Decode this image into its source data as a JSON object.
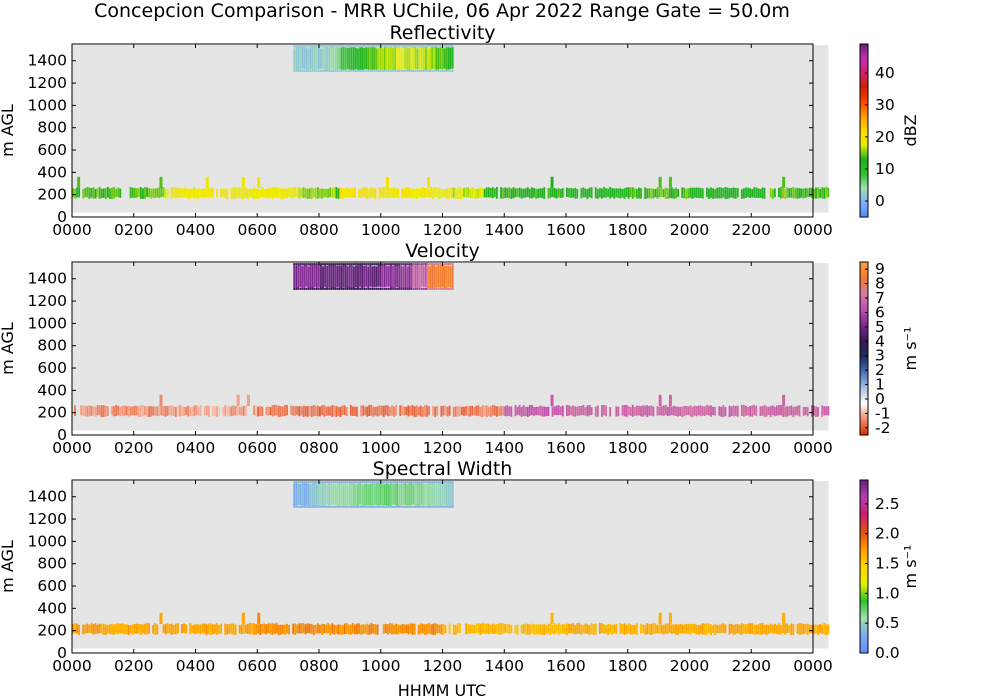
{
  "figure": {
    "suptitle": "Concepcion Comparison - MRR UChile, 06 Apr 2022 Range Gate = 50.0m",
    "xlabel": "HHMM UTC"
  },
  "colors": {
    "background": "#ffffff",
    "panel_fill": "#e5e5e5"
  },
  "chart_data": [
    {
      "type": "heatmap",
      "title": "Reflectivity",
      "xlabel": "HHMM UTC",
      "ylabel": "m AGL",
      "xlim": [
        0,
        2400
      ],
      "ylim": [
        0,
        1550
      ],
      "xticks": [
        "0000",
        "0200",
        "0400",
        "0600",
        "0800",
        "1000",
        "1200",
        "1400",
        "1600",
        "1800",
        "2000",
        "2200",
        "0000"
      ],
      "yticks": [
        0,
        200,
        400,
        600,
        800,
        1000,
        1200,
        1400
      ],
      "colorbar": {
        "label": "dBZ",
        "range": [
          -5,
          49
        ],
        "ticks": [
          "0",
          "10",
          "20",
          "30",
          "40"
        ],
        "tick_values": [
          0,
          10,
          20,
          30,
          40
        ],
        "colors": [
          "#4c8aff",
          "#7fb1f5",
          "#a0e0b0",
          "#2ec030",
          "#22b022",
          "#e6f000",
          "#ffd800",
          "#ff9a00",
          "#ff4500",
          "#d02000",
          "#cc2070",
          "#c030b0",
          "#6a1f80"
        ]
      },
      "layers": [
        {
          "name": "boundary-layer echo",
          "t_start": 0,
          "t_end": 2390,
          "y_bottom": 170,
          "y_top": 260,
          "segments": [
            [
              0,
              260,
              14
            ],
            [
              260,
              720,
              19
            ],
            [
              720,
              790,
              16
            ],
            [
              840,
              1060,
              20
            ],
            [
              1060,
              1180,
              19
            ],
            [
              1180,
              1320,
              17
            ],
            [
              1320,
              1560,
              13
            ],
            [
              1560,
              1760,
              11
            ],
            [
              1760,
              2000,
              14
            ],
            [
              2000,
              2230,
              12
            ],
            [
              2230,
              2390,
              14
            ]
          ],
          "spikes_hhmm": [
            10,
            250,
            420,
            530,
            560,
            1010,
            1130,
            1490,
            1900,
            1920,
            2300
          ]
        },
        {
          "name": "elevated layer",
          "t_start": 710,
          "t_end": 1220,
          "y_bottom": 1320,
          "y_top": 1520,
          "core_center_time": 1050,
          "core_value": 17,
          "edge_value": 2
        }
      ]
    },
    {
      "type": "heatmap",
      "title": "Velocity",
      "xlabel": "HHMM UTC",
      "ylabel": "m AGL",
      "xlim": [
        0,
        2400
      ],
      "ylim": [
        0,
        1550
      ],
      "xticks": [
        "0000",
        "0200",
        "0400",
        "0600",
        "0800",
        "1000",
        "1200",
        "1400",
        "1600",
        "1800",
        "2000",
        "2200",
        "0000"
      ],
      "yticks": [
        0,
        200,
        400,
        600,
        800,
        1000,
        1200,
        1400
      ],
      "colorbar": {
        "label": "m s⁻¹",
        "range": [
          -2.5,
          9.5
        ],
        "ticks": [
          "-2",
          "-1",
          "0",
          "1",
          "2",
          "3",
          "4",
          "5",
          "6",
          "7",
          "8",
          "9"
        ],
        "tick_values": [
          -2,
          -1,
          0,
          1,
          2,
          3,
          4,
          5,
          6,
          7,
          8,
          9
        ],
        "colors": [
          "#d63200",
          "#f08a6a",
          "#ffffff",
          "#a8c0e0",
          "#4a70b8",
          "#1a2a5a",
          "#3a1a50",
          "#7a2a90",
          "#c050b0",
          "#d67aa0",
          "#f07a30",
          "#ffa040"
        ]
      },
      "layers": [
        {
          "name": "boundary-layer echo",
          "t_start": 0,
          "t_end": 2390,
          "y_bottom": 170,
          "y_top": 260,
          "segments": [
            [
              0,
              260,
              -1.4
            ],
            [
              260,
              600,
              -1.2
            ],
            [
              600,
              1100,
              -1.6
            ],
            [
              1100,
              1400,
              -1.5
            ],
            [
              1400,
              1600,
              6.5
            ],
            [
              1600,
              2390,
              6.8
            ]
          ],
          "spikes_hhmm": [
            250,
            520,
            540,
            1490,
            1900,
            1920,
            2300
          ]
        },
        {
          "name": "elevated layer",
          "t_start": 710,
          "t_end": 1220,
          "y_bottom": 1320,
          "y_top": 1520,
          "segments": [
            [
              710,
              800,
              5.2
            ],
            [
              800,
              960,
              4.8
            ],
            [
              960,
              1060,
              5.5
            ],
            [
              1060,
              1130,
              6.8
            ],
            [
              1130,
              1220,
              8.5
            ]
          ]
        }
      ]
    },
    {
      "type": "heatmap",
      "title": "Spectral Width",
      "xlabel": "HHMM UTC",
      "ylabel": "m AGL",
      "xlim": [
        0,
        2400
      ],
      "ylim": [
        0,
        1550
      ],
      "xticks": [
        "0000",
        "0200",
        "0400",
        "0600",
        "0800",
        "1000",
        "1200",
        "1400",
        "1600",
        "1800",
        "2000",
        "2200",
        "0000"
      ],
      "yticks": [
        0,
        200,
        400,
        600,
        800,
        1000,
        1200,
        1400
      ],
      "colorbar": {
        "label": "m s⁻¹",
        "range": [
          0,
          2.9
        ],
        "ticks": [
          "0.0",
          "0.5",
          "1.0",
          "1.5",
          "2.0",
          "2.5"
        ],
        "tick_values": [
          0,
          0.5,
          1.0,
          1.5,
          2.0,
          2.5
        ],
        "colors": [
          "#6a8cff",
          "#7aaaf0",
          "#a0e0b0",
          "#2ec030",
          "#e6f000",
          "#ffd800",
          "#ff9a00",
          "#e05010",
          "#cc2070",
          "#b040b0",
          "#6a1f80"
        ]
      },
      "layers": [
        {
          "name": "boundary-layer echo",
          "t_start": 0,
          "t_end": 2390,
          "y_bottom": 170,
          "y_top": 260,
          "segments": [
            [
              0,
              600,
              1.7
            ],
            [
              600,
              1200,
              1.8
            ],
            [
              1200,
              1600,
              1.6
            ],
            [
              1600,
              2390,
              1.65
            ]
          ],
          "spikes_hhmm": [
            250,
            530,
            560,
            1490,
            1900,
            1920,
            2300
          ]
        },
        {
          "name": "elevated layer",
          "t_start": 710,
          "t_end": 1220,
          "y_bottom": 1320,
          "y_top": 1520,
          "core_value": 0.7,
          "edge_value": 0.35
        }
      ]
    }
  ]
}
